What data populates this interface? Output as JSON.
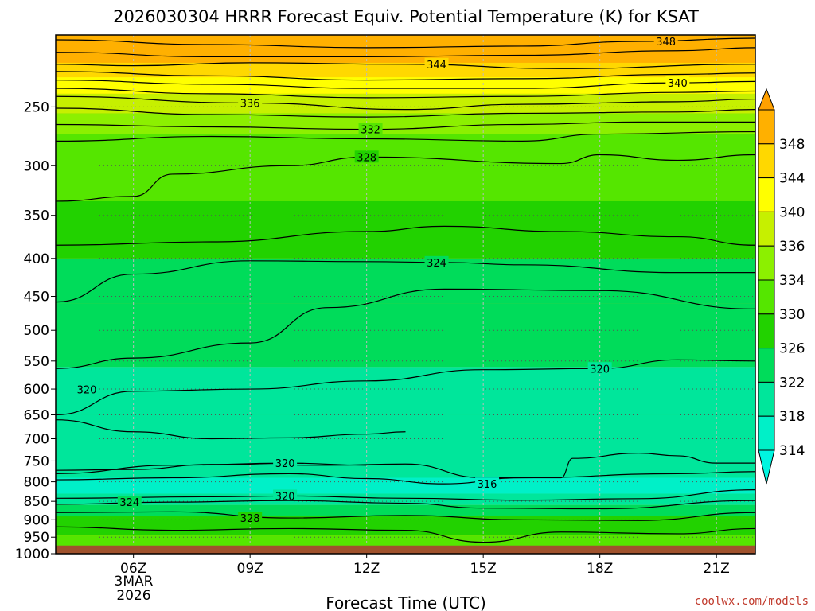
{
  "chart_data": {
    "type": "heatmap",
    "title": "2026030304 HRRR Forecast Equiv. Potential Temperature (K) for KSAT",
    "xlabel": "Forecast Time (UTC)",
    "ylabel": "",
    "x_ticks": [
      {
        "hour": 6,
        "label": "06Z"
      },
      {
        "hour": 9,
        "label": "09Z"
      },
      {
        "hour": 12,
        "label": "12Z"
      },
      {
        "hour": 15,
        "label": "15Z"
      },
      {
        "hour": 18,
        "label": "18Z"
      },
      {
        "hour": 21,
        "label": "21Z"
      }
    ],
    "x_date_label": [
      "3MAR",
      "2026"
    ],
    "xlim": [
      4,
      22
    ],
    "y_ticks": [
      250,
      300,
      350,
      400,
      450,
      500,
      550,
      600,
      650,
      700,
      750,
      800,
      850,
      900,
      950,
      1000
    ],
    "ylim_hpa": [
      200,
      1000
    ],
    "y_scale": "log-pressure",
    "grid": true,
    "colorbar": {
      "levels": [
        314,
        318,
        322,
        326,
        330,
        334,
        336,
        340,
        344,
        348
      ],
      "labels": [
        "314",
        "318",
        "322",
        "326",
        "330",
        "334",
        "336",
        "340",
        "344",
        "348"
      ],
      "colors": [
        "#00f0c8",
        "#00e69b",
        "#00dc5a",
        "#22d200",
        "#55e600",
        "#8cf000",
        "#c6f000",
        "#ffff00",
        "#ffd800",
        "#ffb000"
      ],
      "under_color": "#00f5e0",
      "over_color": "#ffa000"
    },
    "surface_color": "#a0522d",
    "surface_pressure": 975,
    "bands": [
      {
        "p": 200,
        "value": 348
      },
      {
        "p": 218,
        "value": 344
      },
      {
        "p": 228,
        "value": 340
      },
      {
        "p": 240,
        "value": 336
      },
      {
        "p": 255,
        "value": 334
      },
      {
        "p": 272,
        "value": 330
      },
      {
        "p": 335,
        "value": 326
      },
      {
        "p": 400,
        "value": 324
      },
      {
        "p": 460,
        "value": 322
      },
      {
        "p": 560,
        "value": 320
      },
      {
        "p": 650,
        "value": 318
      },
      {
        "p": 790,
        "value": 316
      },
      {
        "p": 830,
        "value": 320
      },
      {
        "p": 860,
        "value": 324
      },
      {
        "p": 890,
        "value": 328
      },
      {
        "p": 945,
        "value": 332
      }
    ],
    "contours": [
      {
        "value": 348,
        "label": "348",
        "points": [
          [
            4,
            203
          ],
          [
            8,
            206
          ],
          [
            12,
            208
          ],
          [
            16,
            207
          ],
          [
            19,
            204
          ],
          [
            22,
            202
          ]
        ],
        "label_at": [
          19.7,
          204
        ]
      },
      {
        "value": 346,
        "label": "",
        "points": [
          [
            4,
            211
          ],
          [
            8,
            214
          ],
          [
            12,
            214
          ],
          [
            16,
            213
          ],
          [
            20,
            210
          ],
          [
            22,
            208
          ]
        ]
      },
      {
        "value": 344,
        "label": "344",
        "points": [
          [
            4,
            219
          ],
          [
            6,
            220
          ],
          [
            9,
            218
          ],
          [
            13,
            219
          ],
          [
            17,
            222
          ],
          [
            22,
            219
          ]
        ],
        "label_at": [
          13.8,
          219
        ]
      },
      {
        "value": 342,
        "label": "",
        "points": [
          [
            4,
            224
          ],
          [
            8,
            227
          ],
          [
            12,
            230
          ],
          [
            16,
            229
          ],
          [
            20,
            226
          ],
          [
            22,
            225
          ]
        ]
      },
      {
        "value": 340,
        "label": "340",
        "points": [
          [
            4,
            230
          ],
          [
            8,
            233
          ],
          [
            12,
            236
          ],
          [
            16,
            236
          ],
          [
            20,
            232
          ],
          [
            22,
            231
          ]
        ],
        "label_at": [
          20,
          232
        ]
      },
      {
        "value": 338,
        "label": "",
        "points": [
          [
            4,
            236
          ],
          [
            8,
            240
          ],
          [
            12,
            243
          ],
          [
            16,
            242
          ],
          [
            20,
            239
          ],
          [
            22,
            238
          ]
        ]
      },
      {
        "value": 336,
        "label": "336",
        "points": [
          [
            4,
            242
          ],
          [
            9,
            247
          ],
          [
            13,
            252
          ],
          [
            16,
            248
          ],
          [
            20,
            246
          ],
          [
            22,
            244
          ]
        ],
        "label_at": [
          9,
          247
        ]
      },
      {
        "value": 334,
        "label": "",
        "points": [
          [
            4,
            251
          ],
          [
            8,
            256
          ],
          [
            12,
            258
          ],
          [
            16,
            255
          ],
          [
            20,
            254
          ],
          [
            22,
            252
          ]
        ]
      },
      {
        "value": 332,
        "label": "332",
        "points": [
          [
            4,
            264
          ],
          [
            8,
            266
          ],
          [
            12,
            268
          ],
          [
            16,
            264
          ],
          [
            19,
            262
          ],
          [
            22,
            262
          ]
        ],
        "label_at": [
          12.1,
          268
        ]
      },
      {
        "value": 330,
        "label": "",
        "points": [
          [
            4,
            278
          ],
          [
            8,
            274
          ],
          [
            12,
            276
          ],
          [
            16,
            278
          ],
          [
            18,
            272
          ],
          [
            22,
            270
          ]
        ]
      },
      {
        "value": 328,
        "label": "328",
        "points": [
          [
            4,
            335
          ],
          [
            6,
            330
          ],
          [
            7,
            308
          ],
          [
            10,
            300
          ],
          [
            12,
            292
          ],
          [
            17,
            298
          ],
          [
            18,
            290
          ],
          [
            20,
            295
          ],
          [
            22,
            290
          ]
        ],
        "label_at": [
          12,
          292
        ]
      },
      {
        "value": 326,
        "label": "",
        "points": [
          [
            4,
            384
          ],
          [
            8,
            380
          ],
          [
            12,
            368
          ],
          [
            14,
            362
          ],
          [
            17,
            368
          ],
          [
            20,
            374
          ],
          [
            22,
            384
          ]
        ]
      },
      {
        "value": 324,
        "label": "324",
        "points": [
          [
            4,
            458
          ],
          [
            6,
            420
          ],
          [
            9,
            403
          ],
          [
            12,
            404
          ],
          [
            14,
            405
          ],
          [
            16,
            408
          ],
          [
            20,
            418
          ],
          [
            22,
            418
          ]
        ],
        "label_at": [
          13.8,
          405
        ]
      },
      {
        "value": 322,
        "label": "",
        "points": [
          [
            4,
            563
          ],
          [
            6,
            545
          ],
          [
            9,
            520
          ],
          [
            11,
            466
          ],
          [
            14,
            440
          ],
          [
            18,
            442
          ],
          [
            22,
            468
          ]
        ]
      },
      {
        "value": 320,
        "label": "320",
        "points": [
          [
            4,
            650
          ],
          [
            6,
            604
          ],
          [
            9,
            600
          ],
          [
            12,
            585
          ],
          [
            15,
            565
          ],
          [
            18,
            563
          ],
          [
            20,
            548
          ],
          [
            22,
            550
          ]
        ],
        "label_at": [
          18,
          563
        ]
      },
      {
        "value": 320,
        "label": "320",
        "points": [
          [
            4,
            660
          ],
          [
            6,
            685
          ],
          [
            8,
            700
          ],
          [
            10,
            698
          ],
          [
            12,
            690
          ],
          [
            13,
            685
          ]
        ],
        "label_at": [
          4.8,
          601
        ]
      },
      {
        "value": 318,
        "label": "",
        "points": [
          [
            4,
            772
          ],
          [
            6,
            770
          ],
          [
            8,
            758
          ],
          [
            11,
            760
          ],
          [
            13,
            757
          ],
          [
            15,
            790
          ],
          [
            17,
            790
          ],
          [
            17.3,
            744
          ],
          [
            19,
            732
          ],
          [
            20,
            738
          ],
          [
            21,
            755
          ],
          [
            22,
            755
          ]
        ]
      },
      {
        "value": 320,
        "label": "320",
        "points": [
          [
            4,
            780
          ],
          [
            7,
            760
          ],
          [
            10,
            755
          ],
          [
            12,
            760
          ]
        ],
        "label_at": [
          9.9,
          755
        ]
      },
      {
        "value": 316,
        "label": "316",
        "points": [
          [
            4,
            795
          ],
          [
            7,
            790
          ],
          [
            10,
            780
          ],
          [
            12,
            792
          ],
          [
            14,
            805
          ],
          [
            16,
            790
          ],
          [
            20,
            780
          ],
          [
            22,
            775
          ]
        ],
        "label_at": [
          15.1,
          805
        ]
      },
      {
        "value": 320,
        "label": "320",
        "points": [
          [
            4,
            842
          ],
          [
            8,
            838
          ],
          [
            10,
            836
          ],
          [
            13,
            842
          ],
          [
            16,
            847
          ],
          [
            19,
            843
          ],
          [
            22,
            820
          ]
        ],
        "label_at": [
          9.9,
          836
        ]
      },
      {
        "value": 324,
        "label": "324",
        "points": [
          [
            4,
            858
          ],
          [
            7,
            852
          ],
          [
            10,
            848
          ],
          [
            13,
            855
          ],
          [
            15,
            868
          ],
          [
            18,
            870
          ],
          [
            22,
            848
          ]
        ],
        "label_at": [
          5.9,
          852
        ]
      },
      {
        "value": 328,
        "label": "328",
        "points": [
          [
            4,
            880
          ],
          [
            7,
            878
          ],
          [
            10,
            895
          ],
          [
            13,
            888
          ],
          [
            16,
            900
          ],
          [
            19,
            902
          ],
          [
            22,
            880
          ]
        ],
        "label_at": [
          9,
          895
        ]
      },
      {
        "value": 332,
        "label": "",
        "points": [
          [
            4,
            920
          ],
          [
            7,
            930
          ],
          [
            10,
            925
          ],
          [
            13,
            930
          ],
          [
            15,
            965
          ],
          [
            17,
            935
          ],
          [
            20,
            940
          ],
          [
            22,
            925
          ]
        ]
      }
    ]
  },
  "credit": "coolwx.com/models"
}
